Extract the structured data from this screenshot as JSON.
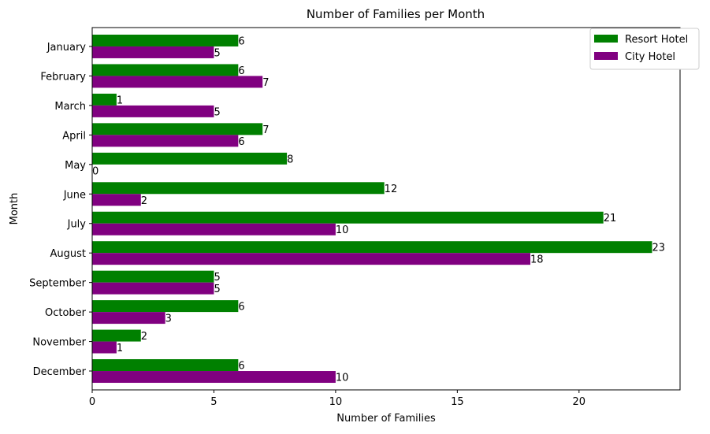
{
  "chart_data": {
    "type": "bar",
    "orientation": "horizontal",
    "title": "Number of Families per Month",
    "xlabel": "Number of Families",
    "ylabel": "Month",
    "xlim": [
      0,
      24.15
    ],
    "xticks": [
      0,
      5,
      10,
      15,
      20
    ],
    "categories": [
      "January",
      "February",
      "March",
      "April",
      "May",
      "June",
      "July",
      "August",
      "September",
      "October",
      "November",
      "December"
    ],
    "series": [
      {
        "name": "Resort Hotel",
        "color": "#008000",
        "values": [
          6,
          6,
          1,
          7,
          8,
          12,
          21,
          23,
          5,
          6,
          2,
          6
        ]
      },
      {
        "name": "City Hotel",
        "color": "#800080",
        "values": [
          5,
          7,
          5,
          6,
          0,
          2,
          10,
          18,
          5,
          3,
          1,
          10
        ]
      }
    ],
    "legend_position": "top-right",
    "grid": false
  }
}
